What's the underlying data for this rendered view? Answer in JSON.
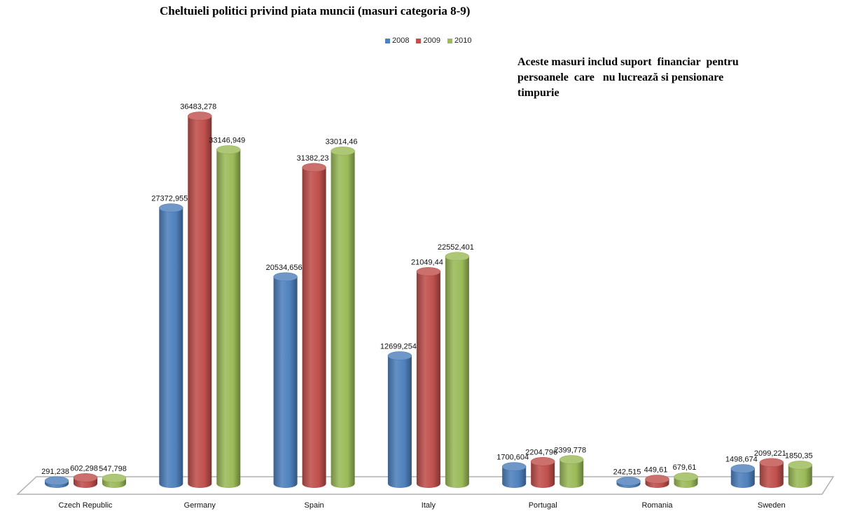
{
  "chart_data": {
    "type": "bar",
    "style": "3d-cylinder",
    "title": "Cheltuieli politici privind piata muncii (masuri categoria 8-9)",
    "xlabel": "",
    "ylabel": "",
    "ylim": [
      0,
      40000
    ],
    "grid": false,
    "legend_position": "top-center",
    "categories": [
      "Czech Republic",
      "Germany",
      "Spain",
      "Italy",
      "Portugal",
      "Romania",
      "Sweden"
    ],
    "series": [
      {
        "name": "2008",
        "color": "#4F81BD",
        "values": [
          291.238,
          27372.955,
          20534.656,
          12699.254,
          1700.604,
          242.515,
          1498.674
        ],
        "labels": [
          "291,238",
          "27372,955",
          "20534,656",
          "12699,254",
          "1700,604",
          "242,515",
          "1498,674"
        ]
      },
      {
        "name": "2009",
        "color": "#C0504D",
        "values": [
          602.298,
          36483.278,
          31382.23,
          21049.44,
          2204.796,
          449.61,
          2099.221
        ],
        "labels": [
          "602,298",
          "36483,278",
          "31382,23",
          "21049,44",
          "2204,796",
          "449,61",
          "2099,221"
        ]
      },
      {
        "name": "2010",
        "color": "#9BBB59",
        "values": [
          547.798,
          33146.949,
          33014.46,
          22552.401,
          2399.778,
          679.61,
          1850.35
        ],
        "labels": [
          "547,798",
          "33146,949",
          "33014,46",
          "22552,401",
          "2399,778",
          "679,61",
          "1850,35"
        ]
      }
    ],
    "annotation": [
      "Aceste masuri includ suport  financiar  pentru",
      "persoanele  care   nu lucrează si pensionare",
      "timpurie"
    ]
  }
}
